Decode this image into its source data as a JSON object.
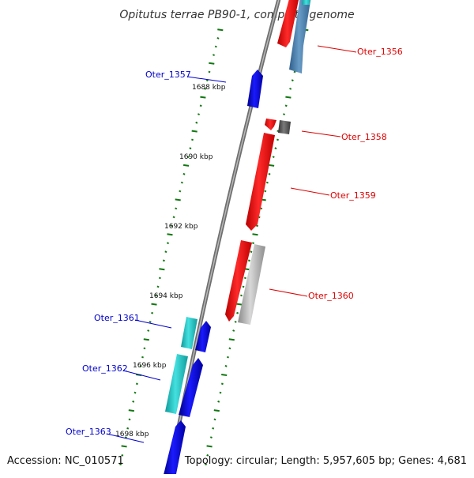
{
  "title": "Opitutus terrae PB90-1, complete genome",
  "accession": "Accession: NC_010571",
  "topology": "Topology: circular; Length: 5,957,605 bp; Genes: 4,681",
  "kbp_labels": [
    "1688 kbp",
    "1690 kbp",
    "1692 kbp",
    "1694 kbp",
    "1696 kbp",
    "1698 kbp"
  ],
  "genes": [
    {
      "id": "Oter_1356",
      "color": "#dd0000"
    },
    {
      "id": "Oter_1357",
      "color": "#0000cc"
    },
    {
      "id": "Oter_1358",
      "color": "#dd0000"
    },
    {
      "id": "Oter_1359",
      "color": "#dd0000"
    },
    {
      "id": "Oter_1360",
      "color": "#dd0000"
    },
    {
      "id": "Oter_1361",
      "color": "#0000cc"
    },
    {
      "id": "Oter_1362",
      "color": "#0000cc"
    },
    {
      "id": "Oter_1363",
      "color": "#0000cc"
    }
  ],
  "colors": {
    "forward_gene": "#ff0000",
    "reverse_gene": "#0000ee",
    "cyan_gene": "#22cccc",
    "steel_gene": "#4a80b0",
    "grey_gene": "#aaaaaa",
    "dark_grey_gene": "#555555",
    "backbone": "#888888",
    "tick": "#117711"
  }
}
